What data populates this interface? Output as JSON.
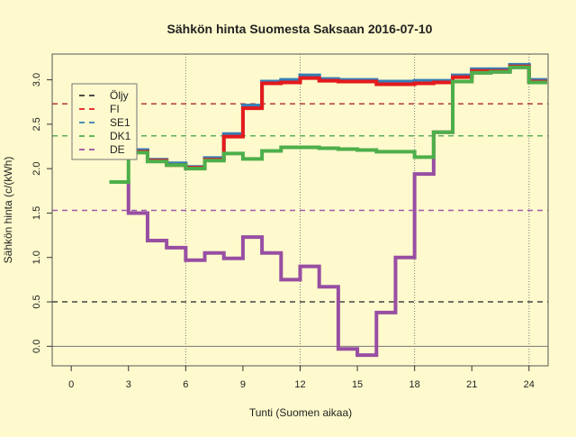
{
  "chart_data": {
    "type": "line",
    "title": "Sähkön hinta Suomesta Saksaan 2016-07-10",
    "xlabel": "Tunti (Suomen aikaa)",
    "ylabel": "Sähkön hinta (c/(kWh)",
    "xlim": [
      -1,
      25
    ],
    "ylim": [
      -0.22,
      3.29
    ],
    "xticks": [
      0,
      3,
      6,
      9,
      12,
      15,
      18,
      21,
      24
    ],
    "yticks": [
      "0.0",
      "0.5",
      "1.0",
      "1.5",
      "2.0",
      "2.5",
      "3.0"
    ],
    "vertical_gridlines": [
      6,
      12,
      18,
      24
    ],
    "zero_line": 0,
    "legend_position": "top-left",
    "step": true,
    "hours": [
      2,
      3,
      4,
      5,
      6,
      7,
      8,
      9,
      10,
      11,
      12,
      13,
      14,
      15,
      16,
      17,
      18,
      19,
      20,
      21,
      22,
      23,
      24
    ],
    "series": [
      {
        "name": "DE",
        "color": "#984ea3",
        "mean": 1.53,
        "values": [
          1.85,
          1.5,
          1.19,
          1.11,
          0.97,
          1.05,
          0.99,
          1.23,
          1.05,
          0.75,
          0.9,
          0.67,
          -0.03,
          -0.1,
          0.38,
          1.0,
          1.94,
          2.41,
          2.98,
          3.08,
          3.09,
          3.14,
          2.97
        ]
      },
      {
        "name": "SE1",
        "color": "#377eb8",
        "mean": 2.73,
        "values": [
          2.22,
          2.21,
          2.1,
          2.06,
          2.02,
          2.12,
          2.39,
          2.71,
          2.98,
          3.0,
          3.05,
          3.01,
          3.0,
          3.0,
          2.98,
          2.98,
          2.99,
          2.99,
          3.05,
          3.12,
          3.12,
          3.17,
          3.0
        ]
      },
      {
        "name": "FI",
        "color": "#e41a1c",
        "mean": 2.73,
        "values": [
          2.2,
          2.19,
          2.09,
          2.04,
          2.01,
          2.1,
          2.36,
          2.68,
          2.96,
          2.97,
          3.02,
          2.99,
          2.98,
          2.98,
          2.95,
          2.95,
          2.96,
          2.97,
          3.03,
          3.1,
          3.1,
          3.15,
          2.98
        ]
      },
      {
        "name": "DK1",
        "color": "#4daf4a",
        "mean": 2.37,
        "values": [
          1.85,
          2.18,
          2.08,
          2.04,
          2.0,
          2.09,
          2.17,
          2.11,
          2.2,
          2.24,
          2.24,
          2.23,
          2.22,
          2.21,
          2.19,
          2.19,
          2.13,
          2.41,
          2.98,
          3.08,
          3.09,
          3.14,
          2.97
        ]
      }
    ],
    "reference_lines": [
      {
        "name": "Öljy",
        "value": 0.5,
        "color": "#444444"
      },
      {
        "name": "FI",
        "value": 2.73,
        "color": "#b23a3e"
      },
      {
        "name": "DK1",
        "value": 2.37,
        "color": "#5cb058"
      },
      {
        "name": "DE",
        "value": 1.53,
        "color": "#a05ab0"
      }
    ],
    "legend": [
      {
        "label": "Öljy",
        "color": "#333333"
      },
      {
        "label": "FI",
        "color": "#e41a1c"
      },
      {
        "label": "SE1",
        "color": "#377eb8"
      },
      {
        "label": "DK1",
        "color": "#4daf4a"
      },
      {
        "label": "DE",
        "color": "#984ea3"
      }
    ]
  }
}
